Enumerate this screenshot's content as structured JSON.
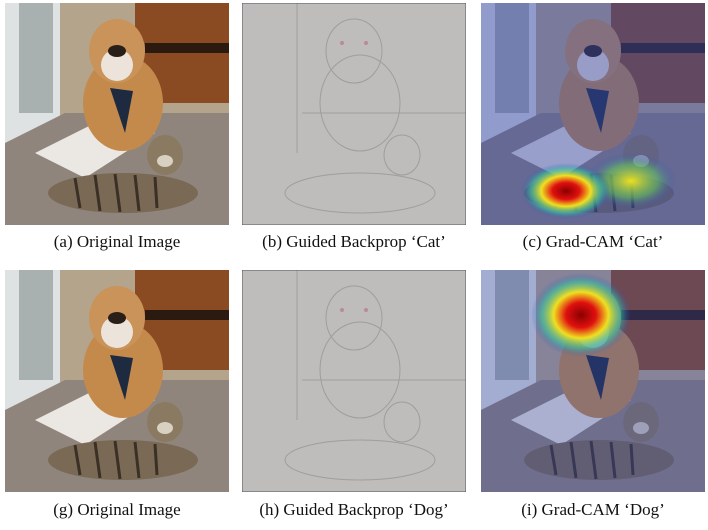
{
  "panels": [
    {
      "caption": "(a) Original Image"
    },
    {
      "caption": "(b) Guided Backprop ‘Cat’"
    },
    {
      "caption": "(c) Grad-CAM ‘Cat’"
    },
    {
      "caption": "(g) Original Image"
    },
    {
      "caption": "(h) Guided Backprop ‘Dog’"
    },
    {
      "caption": "(i) Grad-CAM ‘Dog’"
    }
  ]
}
